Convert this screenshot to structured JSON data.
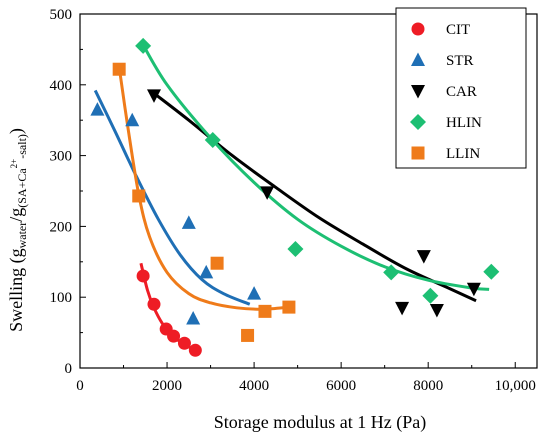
{
  "chart_data": {
    "type": "scatter",
    "xlabel": "Storage modulus at 1 Hz (Pa)",
    "ylabel": {
      "prefix": "Swelling (g",
      "sub1": "water",
      "mid": "/g",
      "sub2": "(SA+Ca",
      "sup": "2+",
      "sub3": "-salt)",
      "suffix": ")"
    },
    "xlim": [
      0,
      10500
    ],
    "ylim": [
      0,
      500
    ],
    "x_ticks": [
      0,
      2000,
      4000,
      6000,
      8000,
      10000
    ],
    "x_tick_labels": [
      "0",
      "2000",
      "4000",
      "6000",
      "8000",
      "10,000"
    ],
    "y_ticks": [
      0,
      100,
      200,
      300,
      400,
      500
    ],
    "y_tick_labels": [
      "0",
      "100",
      "200",
      "300",
      "400",
      "500"
    ],
    "legend_position": "top-right",
    "series": [
      {
        "name": "CIT",
        "marker": "circle",
        "color": "#ee1c25",
        "points": [
          [
            1450,
            130
          ],
          [
            1700,
            90
          ],
          [
            1980,
            55
          ],
          [
            2150,
            45
          ],
          [
            2400,
            35
          ],
          [
            2650,
            25
          ]
        ],
        "fit": [
          [
            1400,
            148
          ],
          [
            1550,
            110
          ],
          [
            1700,
            85
          ],
          [
            1900,
            62
          ],
          [
            2100,
            47
          ],
          [
            2350,
            35
          ],
          [
            2650,
            25
          ]
        ]
      },
      {
        "name": "STR",
        "marker": "triangle-up",
        "color": "#1f6fb5",
        "points": [
          [
            400,
            365
          ],
          [
            1200,
            350
          ],
          [
            2500,
            205
          ],
          [
            2600,
            70
          ],
          [
            2900,
            135
          ],
          [
            4000,
            105
          ]
        ],
        "fit": [
          [
            350,
            392
          ],
          [
            800,
            335
          ],
          [
            1300,
            270
          ],
          [
            1800,
            210
          ],
          [
            2300,
            160
          ],
          [
            2800,
            125
          ],
          [
            3300,
            105
          ],
          [
            3900,
            90
          ]
        ]
      },
      {
        "name": "CAR",
        "marker": "triangle-down",
        "color": "#000000",
        "points": [
          [
            1700,
            385
          ],
          [
            4300,
            248
          ],
          [
            7400,
            85
          ],
          [
            7900,
            158
          ],
          [
            8200,
            82
          ],
          [
            9050,
            112
          ]
        ],
        "fit": [
          [
            1700,
            388
          ],
          [
            2500,
            350
          ],
          [
            3500,
            300
          ],
          [
            4500,
            255
          ],
          [
            5500,
            212
          ],
          [
            6500,
            175
          ],
          [
            7500,
            140
          ],
          [
            8500,
            112
          ],
          [
            9100,
            95
          ]
        ]
      },
      {
        "name": "HLIN",
        "marker": "diamond",
        "color": "#1dbf73",
        "points": [
          [
            1450,
            455
          ],
          [
            3050,
            322
          ],
          [
            4950,
            168
          ],
          [
            7150,
            135
          ],
          [
            8050,
            102
          ],
          [
            9450,
            136
          ]
        ],
        "fit": [
          [
            1400,
            462
          ],
          [
            2000,
            400
          ],
          [
            3000,
            325
          ],
          [
            4000,
            262
          ],
          [
            5000,
            210
          ],
          [
            6000,
            172
          ],
          [
            7000,
            143
          ],
          [
            8000,
            124
          ],
          [
            9000,
            113
          ],
          [
            9400,
            111
          ]
        ]
      },
      {
        "name": "LLIN",
        "marker": "square",
        "color": "#ef7b1a",
        "points": [
          [
            900,
            422
          ],
          [
            1350,
            243
          ],
          [
            3150,
            148
          ],
          [
            3850,
            46
          ],
          [
            4250,
            80
          ],
          [
            4800,
            86
          ]
        ],
        "fit": [
          [
            900,
            425
          ],
          [
            1100,
            340
          ],
          [
            1350,
            245
          ],
          [
            1600,
            185
          ],
          [
            2000,
            135
          ],
          [
            2500,
            105
          ],
          [
            3000,
            92
          ],
          [
            3600,
            85
          ],
          [
            4200,
            83
          ],
          [
            4800,
            86
          ]
        ]
      }
    ]
  }
}
